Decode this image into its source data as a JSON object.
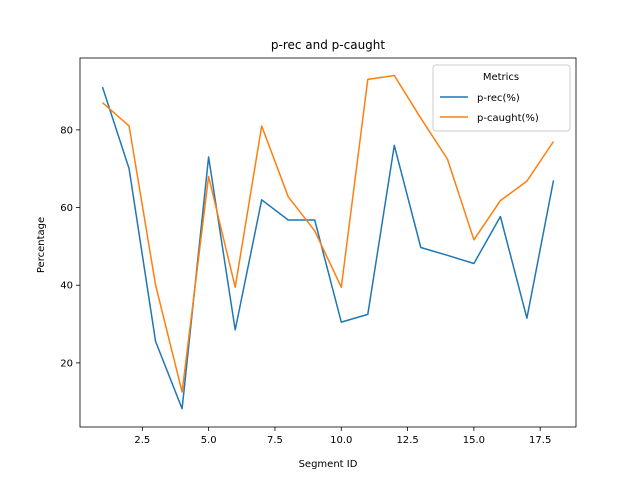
{
  "chart_data": {
    "type": "line",
    "title": "p-rec and p-caught",
    "xlabel": "Segment ID",
    "ylabel": "Percentage",
    "xlim": [
      0.15,
      18.85
    ],
    "ylim": [
      3.5,
      98.5
    ],
    "xticks": [
      2.5,
      5.0,
      7.5,
      10.0,
      12.5,
      15.0,
      17.5
    ],
    "xtick_labels": [
      "2.5",
      "5.0",
      "7.5",
      "10.0",
      "12.5",
      "15.0",
      "17.5"
    ],
    "yticks": [
      20,
      40,
      60,
      80
    ],
    "ytick_labels": [
      "20",
      "40",
      "60",
      "80"
    ],
    "grid": false,
    "legend": {
      "title": "Metrics",
      "placement": "upper right"
    },
    "x": [
      1,
      2,
      3,
      4,
      5,
      6,
      7,
      8,
      9,
      10,
      11,
      12,
      13,
      14,
      15,
      16,
      17,
      18
    ],
    "series": [
      {
        "name": "p-rec(%)",
        "color": "#1f77b4",
        "values": [
          91,
          70,
          25.5,
          8.2,
          73,
          28.5,
          62,
          56.8,
          56.8,
          30.5,
          32.5,
          76,
          49.7,
          47.7,
          45.6,
          57.7,
          31.5,
          67
        ]
      },
      {
        "name": "p-caught(%)",
        "color": "#ff7f0e",
        "values": [
          87,
          81,
          40,
          12.5,
          68,
          39.5,
          81,
          62.8,
          54,
          39.5,
          93,
          94,
          83,
          72.5,
          51.7,
          61.8,
          66.8,
          77
        ]
      }
    ]
  }
}
